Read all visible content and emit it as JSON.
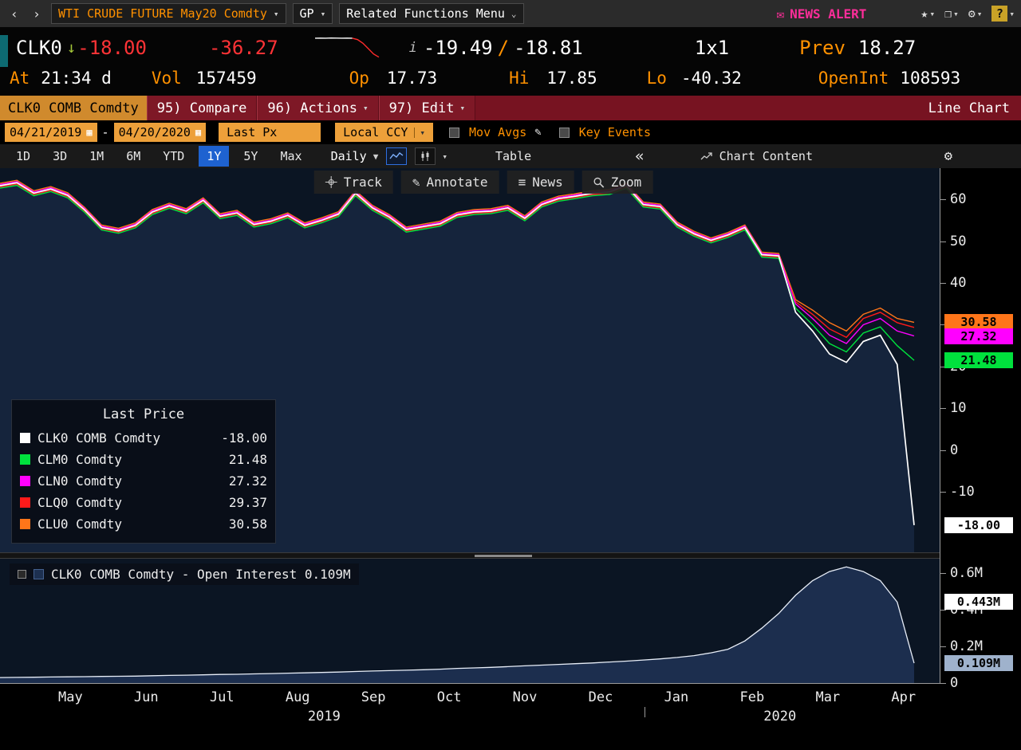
{
  "top_bar": {
    "back": "‹",
    "forward": "›",
    "security": "WTI CRUDE FUTURE May20 Comdty",
    "gp": "GP",
    "related_functions": "Related Functions Menu",
    "news_alert": "NEWS ALERT",
    "help": "?"
  },
  "quote": {
    "ticker": "CLK0",
    "direction": "↓",
    "last": "-18.00",
    "change": "-36.27",
    "bid": "-19.49",
    "ask": "-18.81",
    "size": "1x1",
    "prev_label": "Prev",
    "prev": "18.27",
    "at_label": "At",
    "at": "21:34 d",
    "vol_label": "Vol",
    "vol": "157459",
    "op_label": "Op",
    "op": "17.73",
    "hi_label": "Hi",
    "hi": "17.85",
    "lo_label": "Lo",
    "lo": "-40.32",
    "oi_label": "OpenInt",
    "oi": "108593",
    "sparkline": {
      "values": [
        17.7,
        17.8,
        17.6,
        17.9,
        17.8,
        17.7,
        17.8,
        17.6,
        15.0,
        8.0,
        -2.0,
        -12.0,
        -18.0
      ],
      "split": 7
    }
  },
  "toolbar": {
    "security_label": "CLK0 COMB Comdty",
    "compare": "95) Compare",
    "actions": "96) Actions",
    "edit": "97) Edit",
    "chart_type": "Line Chart"
  },
  "settings": {
    "date_from": "04/21/2019",
    "date_to": "04/20/2020",
    "price_field": "Last Px",
    "currency": "Local CCY",
    "mov_avgs": "Mov Avgs",
    "key_events": "Key Events"
  },
  "period_bar": {
    "tabs": [
      "1D",
      "3D",
      "1M",
      "6M",
      "YTD",
      "1Y",
      "5Y",
      "Max"
    ],
    "active_tab": "1Y",
    "frequency": "Daily",
    "table": "Table",
    "collapse": "«",
    "chart_content": "Chart Content"
  },
  "chart_toolbar": {
    "track": "Track",
    "annotate": "Annotate",
    "news": "News",
    "zoom": "Zoom"
  },
  "legend": {
    "title": "Last Price",
    "rows": [
      {
        "color": "#ffffff",
        "label": "CLK0 COMB Comdty",
        "value": "-18.00"
      },
      {
        "color": "#00e13d",
        "label": "CLM0 Comdty",
        "value": "21.48"
      },
      {
        "color": "#ff00ff",
        "label": "CLN0 Comdty",
        "value": "27.32"
      },
      {
        "color": "#ff1a1a",
        "label": "CLQ0 Comdty",
        "value": "29.37"
      },
      {
        "color": "#ff7519",
        "label": "CLU0 Comdty",
        "value": "30.58"
      }
    ]
  },
  "oi_legend": "CLK0 COMB Comdty - Open Interest 0.109M",
  "x_axis": {
    "months": [
      "May",
      "Jun",
      "Jul",
      "Aug",
      "Sep",
      "Oct",
      "Nov",
      "Dec",
      "Jan",
      "Feb",
      "Mar",
      "Apr"
    ],
    "years": [
      "2019",
      "2020"
    ]
  },
  "chart_data": [
    {
      "type": "line",
      "title": "Last Price",
      "x_range": [
        "04/21/2019",
        "04/20/2020"
      ],
      "x_ticks": [
        "May",
        "Jun",
        "Jul",
        "Aug",
        "Sep",
        "Oct",
        "Nov",
        "Dec",
        "Jan",
        "Feb",
        "Mar",
        "Apr"
      ],
      "ylim": [
        -24.5,
        67.5
      ],
      "grid": false,
      "y_ticks": [
        {
          "v": 60,
          "label": "60"
        },
        {
          "v": 50,
          "label": "50"
        },
        {
          "v": 40,
          "label": "40"
        },
        {
          "v": 30,
          "label": "30"
        },
        {
          "v": 20,
          "label": "20"
        },
        {
          "v": 10,
          "label": "10"
        },
        {
          "v": 0,
          "label": "0"
        },
        {
          "v": -10,
          "label": "-10"
        }
      ],
      "price_labels": [
        {
          "value": 29.37,
          "text": "29.37",
          "bg": "#ff1a1a",
          "fg": "#000000"
        },
        {
          "value": 30.58,
          "text": "30.58",
          "bg": "#ff7519",
          "fg": "#000000"
        },
        {
          "value": 27.32,
          "text": "27.32",
          "bg": "#ff00ff",
          "fg": "#000000"
        },
        {
          "value": 21.48,
          "text": "21.48",
          "bg": "#00e13d",
          "fg": "#000000"
        },
        {
          "value": -18.0,
          "text": "-18.00",
          "bg": "#ffffff",
          "fg": "#000000"
        }
      ],
      "series": [
        {
          "name": "CLU0 Comdty",
          "color": "#ff7519",
          "last": 30.58,
          "width": 1.4,
          "values": [
            63.9,
            64.6,
            62.1,
            63.1,
            61.6,
            58.1,
            53.9,
            53.1,
            54.4,
            57.6,
            59.1,
            57.8,
            60.4,
            56.6,
            57.4,
            54.6,
            55.4,
            56.8,
            54.4,
            55.6,
            57.1,
            62.1,
            58.6,
            56.4,
            53.4,
            54.1,
            54.8,
            56.9,
            57.6,
            57.8,
            58.6,
            56.1,
            59.4,
            60.8,
            61.4,
            62.1,
            62.4,
            63.9,
            59.4,
            58.9,
            54.6,
            52.4,
            50.8,
            52.1,
            53.9,
            47.4,
            47.1,
            36.0,
            33.5,
            30.5,
            28.5,
            32.5,
            34.0,
            31.5,
            30.58
          ]
        },
        {
          "name": "CLQ0 Comdty",
          "color": "#ff1a1a",
          "last": 29.37,
          "width": 1.4,
          "values": [
            63.0,
            63.7,
            61.2,
            62.2,
            60.7,
            57.2,
            53.0,
            52.2,
            53.5,
            56.7,
            58.2,
            56.9,
            59.5,
            55.7,
            56.5,
            53.7,
            54.5,
            55.9,
            53.5,
            54.7,
            56.2,
            61.2,
            57.7,
            55.5,
            52.5,
            53.2,
            53.9,
            56.0,
            56.7,
            56.9,
            57.7,
            55.2,
            58.5,
            59.9,
            60.5,
            61.2,
            61.5,
            63.0,
            58.5,
            58.0,
            53.7,
            51.5,
            49.9,
            51.2,
            53.0,
            46.5,
            46.2,
            35.5,
            32.5,
            29.0,
            27.0,
            31.5,
            33.0,
            30.5,
            29.37
          ]
        },
        {
          "name": "CLN0 Comdty",
          "color": "#ff00ff",
          "last": 27.32,
          "width": 1.4,
          "values": [
            63.6,
            64.3,
            61.8,
            62.8,
            61.3,
            57.8,
            53.6,
            52.8,
            54.1,
            57.3,
            58.8,
            57.5,
            60.1,
            56.3,
            57.1,
            54.3,
            55.1,
            56.5,
            54.1,
            55.3,
            56.8,
            61.8,
            58.3,
            56.1,
            53.1,
            53.8,
            54.5,
            56.6,
            57.3,
            57.5,
            58.3,
            55.8,
            59.1,
            60.5,
            61.1,
            61.8,
            62.1,
            63.6,
            59.1,
            58.6,
            54.3,
            52.1,
            50.5,
            51.8,
            53.6,
            47.1,
            46.8,
            35.0,
            31.5,
            27.5,
            25.5,
            30.0,
            31.5,
            28.5,
            27.32
          ]
        },
        {
          "name": "CLM0 Comdty",
          "color": "#00e13d",
          "last": 21.48,
          "width": 1.4,
          "values": [
            62.7,
            63.4,
            60.9,
            61.9,
            60.4,
            56.9,
            52.7,
            51.9,
            53.2,
            56.4,
            57.9,
            56.6,
            59.2,
            55.4,
            56.2,
            53.4,
            54.2,
            55.6,
            53.2,
            54.4,
            55.9,
            60.9,
            57.4,
            55.2,
            52.2,
            52.9,
            53.6,
            55.7,
            56.4,
            56.6,
            57.4,
            54.9,
            58.2,
            59.6,
            60.2,
            60.9,
            61.2,
            62.7,
            58.2,
            57.7,
            53.4,
            51.2,
            49.6,
            50.9,
            52.7,
            46.2,
            45.9,
            34.0,
            30.0,
            25.5,
            23.5,
            28.0,
            29.5,
            25.0,
            21.48
          ]
        },
        {
          "name": "CLK0 COMB Comdty",
          "color": "#ffffff",
          "last": -18.0,
          "width": 1.7,
          "fill": "#15243c",
          "values": [
            63.3,
            64.0,
            61.5,
            62.5,
            61.0,
            57.5,
            53.3,
            52.5,
            53.8,
            57.0,
            58.5,
            57.2,
            59.8,
            56.0,
            56.8,
            54.0,
            54.8,
            56.2,
            53.8,
            55.0,
            56.5,
            61.5,
            58.0,
            55.8,
            52.8,
            53.5,
            54.2,
            56.3,
            57.0,
            57.2,
            58.0,
            55.5,
            58.8,
            60.2,
            60.8,
            61.5,
            61.8,
            63.3,
            58.8,
            58.3,
            54.0,
            51.8,
            50.2,
            51.5,
            53.3,
            46.8,
            46.5,
            33.0,
            28.5,
            23.0,
            21.0,
            26.0,
            27.5,
            20.5,
            -18.0
          ]
        }
      ]
    },
    {
      "type": "area",
      "title": "Open Interest",
      "ylim": [
        0,
        0.68
      ],
      "grid": false,
      "y_ticks": [
        {
          "v": 0.6,
          "label": "0.6M"
        },
        {
          "v": 0.4,
          "label": "0.4M"
        },
        {
          "v": 0.2,
          "label": "0.2M"
        },
        {
          "v": 0,
          "label": "0"
        }
      ],
      "price_labels": [
        {
          "value": 0.443,
          "text": "0.443M",
          "bg": "#ffffff",
          "fg": "#000000"
        },
        {
          "value": 0.109,
          "text": "0.109M",
          "bg": "#9fb2cc",
          "fg": "#000000"
        }
      ],
      "series": [
        {
          "name": "CLK0 COMB Comdty - Open Interest",
          "color": "#e8eef8",
          "last": 0.109,
          "width": 1.3,
          "fill": "#1c2e4e",
          "values": [
            0.03,
            0.031,
            0.032,
            0.033,
            0.034,
            0.035,
            0.036,
            0.037,
            0.038,
            0.04,
            0.042,
            0.043,
            0.045,
            0.047,
            0.048,
            0.05,
            0.052,
            0.054,
            0.056,
            0.058,
            0.06,
            0.063,
            0.066,
            0.068,
            0.07,
            0.073,
            0.076,
            0.08,
            0.083,
            0.086,
            0.09,
            0.094,
            0.098,
            0.102,
            0.106,
            0.11,
            0.115,
            0.12,
            0.126,
            0.132,
            0.14,
            0.15,
            0.165,
            0.185,
            0.23,
            0.3,
            0.38,
            0.48,
            0.56,
            0.61,
            0.635,
            0.61,
            0.56,
            0.443,
            0.109
          ]
        }
      ]
    }
  ]
}
